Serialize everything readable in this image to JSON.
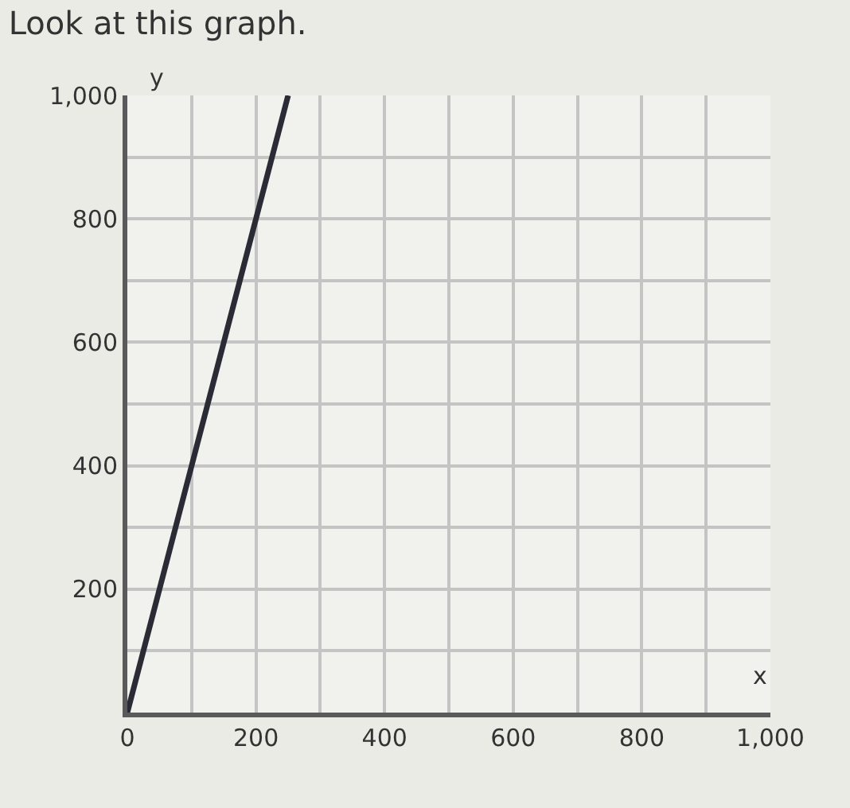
{
  "chart_data": {
    "type": "line",
    "title": "Look at this graph.",
    "xlabel": "x",
    "ylabel": "y",
    "x": [
      0,
      250
    ],
    "series": [
      {
        "color": "#2b2b35",
        "values": [
          0,
          1000
        ]
      }
    ],
    "xlim": [
      0,
      1000
    ],
    "ylim": [
      0,
      1000
    ],
    "xticks": [
      0,
      {
        "value": 100,
        "label": null
      },
      200,
      {
        "value": 300,
        "label": null
      },
      400,
      {
        "value": 500,
        "label": null
      },
      600,
      {
        "value": 700,
        "label": null
      },
      800,
      {
        "value": 900,
        "label": null
      },
      {
        "value": 1000,
        "label": "1,000"
      }
    ],
    "yticks": [
      {
        "value": 0,
        "label": null
      },
      {
        "value": 100,
        "label": null
      },
      200,
      {
        "value": 300,
        "label": null
      },
      400,
      {
        "value": 500,
        "label": null
      },
      600,
      {
        "value": 700,
        "label": null
      },
      800,
      {
        "value": 900,
        "label": null
      },
      {
        "value": 1000,
        "label": "1,000"
      }
    ],
    "grid": true,
    "marker": "none",
    "line_style": "solid",
    "legend": false
  }
}
